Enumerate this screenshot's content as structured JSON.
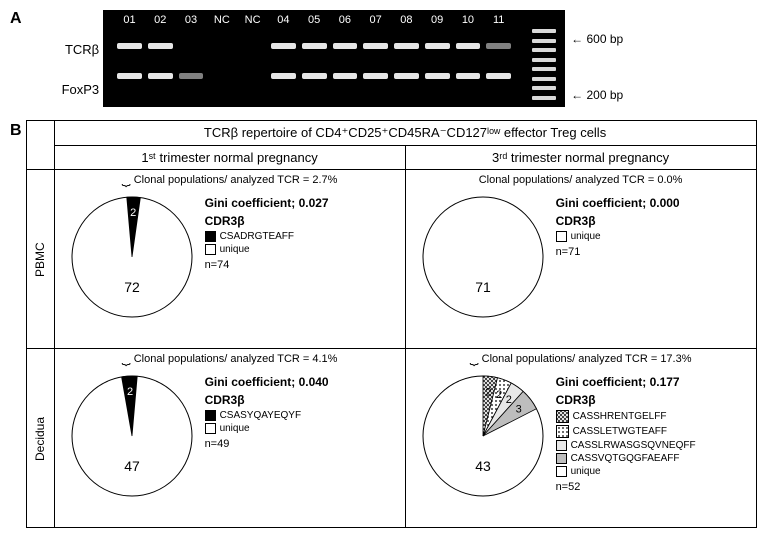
{
  "panelA": {
    "label": "A",
    "left_labels": [
      "TCRβ",
      "FoxP3"
    ],
    "lane_labels": [
      "01",
      "02",
      "03",
      "NC",
      "NC",
      "04",
      "05",
      "06",
      "07",
      "08",
      "09",
      "10",
      "11"
    ],
    "top_bands": [
      "on",
      "on",
      "off",
      "off",
      "off",
      "on",
      "on",
      "on",
      "on",
      "on",
      "on",
      "on",
      "dim"
    ],
    "bot_bands": [
      "on",
      "on",
      "dim",
      "off",
      "off",
      "on",
      "on",
      "on",
      "on",
      "on",
      "on",
      "on",
      "on"
    ],
    "right_labels": [
      "600 bp",
      "200 bp"
    ]
  },
  "panelB": {
    "label": "B",
    "header_main": "TCRβ repertoire of CD4⁺CD25⁺CD45RA⁻CD127ˡᵒʷ effector Treg cells",
    "col_headers": [
      "1ˢᵗ trimester normal pregnancy",
      "3ʳᵈ trimester normal pregnancy"
    ],
    "row_headers": [
      "PBMC",
      "Decidua"
    ],
    "cells": [
      {
        "clonal_text": "Clonal populations/ analyzed TCR = 2.7%",
        "gini": "Gini coefficient; 0.027",
        "cdr_title": "CDR3β",
        "legend": [
          {
            "label": "CSADRGTEAFF",
            "swatch": "#000"
          },
          {
            "label": "unique",
            "swatch": "#fff"
          }
        ],
        "n": "n=74",
        "pie_center": "72",
        "slices": [
          {
            "label": "2",
            "start": -95,
            "extent": 13,
            "fill": "#000",
            "text_color": "#fff"
          }
        ]
      },
      {
        "clonal_text": "Clonal populations/ analyzed TCR = 0.0%",
        "gini": "Gini coefficient; 0.000",
        "cdr_title": "CDR3β",
        "legend": [
          {
            "label": "unique",
            "swatch": "#fff"
          }
        ],
        "n": "n=71",
        "pie_center": "71",
        "slices": []
      },
      {
        "clonal_text": "Clonal populations/ analyzed TCR = 4.1%",
        "gini": "Gini coefficient; 0.040",
        "cdr_title": "CDR3β",
        "legend": [
          {
            "label": "CSASYQAYEQYF",
            "swatch": "#000"
          },
          {
            "label": "unique",
            "swatch": "#fff"
          }
        ],
        "n": "n=49",
        "pie_center": "47",
        "slices": [
          {
            "label": "2",
            "start": -100,
            "extent": 15,
            "fill": "#000",
            "text_color": "#fff"
          }
        ]
      },
      {
        "clonal_text": "Clonal populations/ analyzed TCR = 17.3%",
        "gini": "Gini coefficient; 0.177",
        "cdr_title": "CDR3β",
        "legend": [
          {
            "label": "CASSHRENTGELFF",
            "swatch": "pattern-cross"
          },
          {
            "label": "CASSLETWGTEAFF",
            "swatch": "pattern-dots"
          },
          {
            "label": "CASSLRWASGSQVNEQFF",
            "swatch": "#e8e8e8"
          },
          {
            "label": "CASSVQTGQGFAEAFF",
            "swatch": "#bdbdbd"
          },
          {
            "label": "unique",
            "swatch": "#fff"
          }
        ],
        "n": "n=52",
        "pie_center": "43",
        "slices": [
          {
            "label": "2",
            "start": -90,
            "extent": 14,
            "fill": "pattern-cross",
            "text_color": "#000"
          },
          {
            "label": "2",
            "start": -76,
            "extent": 14,
            "fill": "pattern-dots",
            "text_color": "#000"
          },
          {
            "label": "2",
            "start": -62,
            "extent": 14,
            "fill": "#e8e8e8",
            "text_color": "#000"
          },
          {
            "label": "3",
            "start": -48,
            "extent": 21,
            "fill": "#bdbdbd",
            "text_color": "#000"
          }
        ]
      }
    ]
  }
}
